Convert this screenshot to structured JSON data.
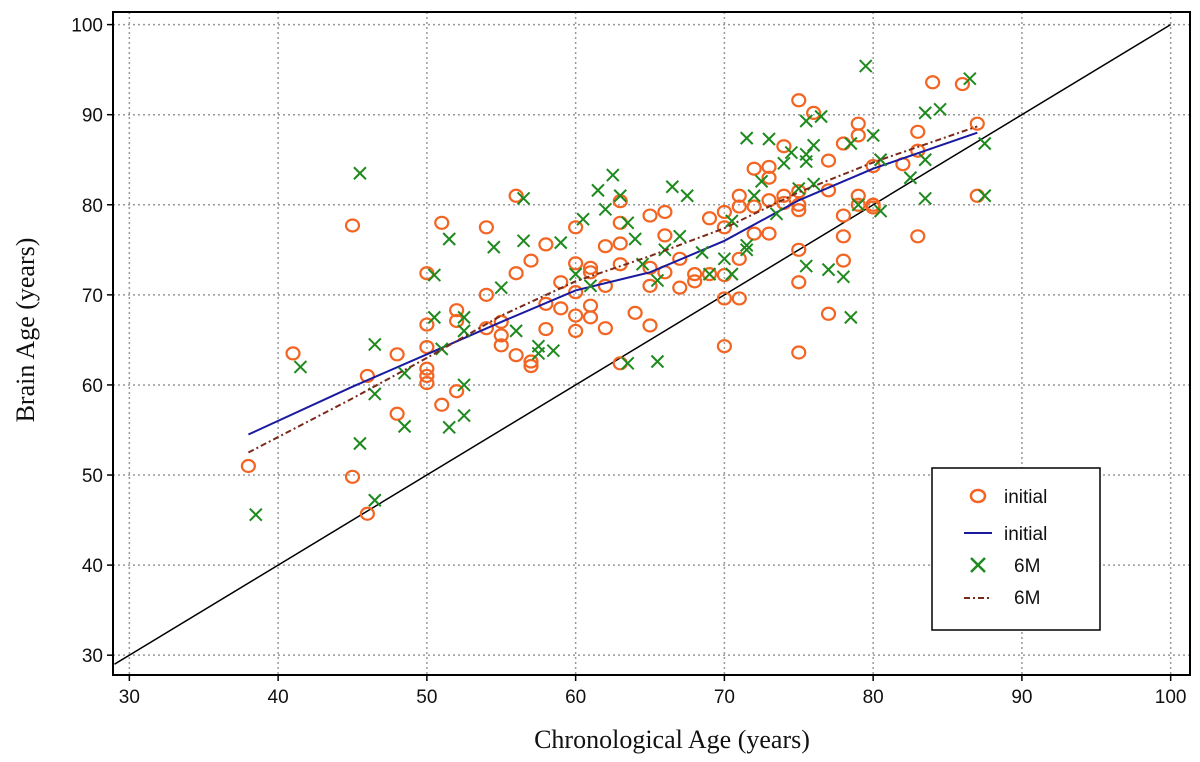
{
  "chart_data": {
    "type": "scatter",
    "title": "",
    "xlabel": "Chronological Age (years)",
    "ylabel": "Brain Age (years)",
    "xlim": [
      28.9,
      101.3
    ],
    "ylim": [
      27.8,
      101.4
    ],
    "xticks": [
      30,
      40,
      50,
      60,
      70,
      80,
      90,
      100
    ],
    "yticks": [
      30,
      40,
      50,
      60,
      70,
      80,
      90,
      100
    ],
    "grid": true,
    "legend_position": "lower-right",
    "reference_line": {
      "name": "identity",
      "x": [
        29,
        100
      ],
      "y": [
        29,
        100
      ],
      "color": "#000000"
    },
    "series": [
      {
        "name": "initial",
        "kind": "scatter",
        "marker": "circle",
        "color": "#f26522",
        "points": [
          [
            38,
            51
          ],
          [
            41,
            63.5
          ],
          [
            45,
            77.7
          ],
          [
            45,
            49.8
          ],
          [
            46,
            61
          ],
          [
            46,
            45.7
          ],
          [
            48,
            63.4
          ],
          [
            48,
            56.8
          ],
          [
            50,
            72.4
          ],
          [
            50,
            66.7
          ],
          [
            50,
            64.2
          ],
          [
            50,
            61.8
          ],
          [
            50,
            61
          ],
          [
            50,
            60.2
          ],
          [
            51,
            78
          ],
          [
            51,
            57.8
          ],
          [
            52,
            68.3
          ],
          [
            52,
            67.1
          ],
          [
            52,
            59.3
          ],
          [
            54,
            77.5
          ],
          [
            54,
            70
          ],
          [
            54,
            66.3
          ],
          [
            55,
            67
          ],
          [
            55,
            65.5
          ],
          [
            55,
            64.4
          ],
          [
            56,
            81
          ],
          [
            56,
            72.4
          ],
          [
            56,
            63.3
          ],
          [
            57,
            73.8
          ],
          [
            57,
            62.6
          ],
          [
            57,
            62.1
          ],
          [
            58,
            75.6
          ],
          [
            58,
            69
          ],
          [
            58,
            66.2
          ],
          [
            59,
            71.4
          ],
          [
            59,
            68.5
          ],
          [
            60,
            77.5
          ],
          [
            60,
            73.5
          ],
          [
            60,
            70.3
          ],
          [
            60,
            67.7
          ],
          [
            60,
            66
          ],
          [
            61,
            73
          ],
          [
            61,
            72.5
          ],
          [
            61,
            68.8
          ],
          [
            61,
            67.5
          ],
          [
            62,
            75.4
          ],
          [
            62,
            71
          ],
          [
            62,
            66.3
          ],
          [
            63,
            80.4
          ],
          [
            63,
            78
          ],
          [
            63,
            75.7
          ],
          [
            63,
            73.4
          ],
          [
            63,
            62.4
          ],
          [
            64,
            68
          ],
          [
            65,
            78.8
          ],
          [
            65,
            73
          ],
          [
            65,
            71
          ],
          [
            65,
            66.6
          ],
          [
            66,
            79.2
          ],
          [
            66,
            76.6
          ],
          [
            66,
            72.5
          ],
          [
            67,
            74
          ],
          [
            67,
            70.8
          ],
          [
            68,
            72.3
          ],
          [
            68,
            71.5
          ],
          [
            69,
            78.5
          ],
          [
            69,
            72.3
          ],
          [
            70,
            79.2
          ],
          [
            70,
            77.5
          ],
          [
            70,
            72.2
          ],
          [
            70,
            69.6
          ],
          [
            70,
            64.3
          ],
          [
            71,
            81
          ],
          [
            71,
            79.8
          ],
          [
            71,
            74
          ],
          [
            71,
            69.6
          ],
          [
            72,
            84
          ],
          [
            72,
            79.8
          ],
          [
            72,
            76.8
          ],
          [
            73,
            84.2
          ],
          [
            73,
            83
          ],
          [
            73,
            80.5
          ],
          [
            73,
            76.8
          ],
          [
            74,
            86.5
          ],
          [
            74,
            81
          ],
          [
            74,
            80.2
          ],
          [
            75,
            91.6
          ],
          [
            75,
            81.5
          ],
          [
            75,
            80
          ],
          [
            75,
            79.4
          ],
          [
            75,
            75
          ],
          [
            75,
            71.4
          ],
          [
            75,
            63.6
          ],
          [
            76,
            90.2
          ],
          [
            77,
            84.9
          ],
          [
            77,
            81.6
          ],
          [
            77,
            67.9
          ],
          [
            78,
            86.8
          ],
          [
            78,
            78.8
          ],
          [
            78,
            76.5
          ],
          [
            78,
            73.8
          ],
          [
            79,
            89
          ],
          [
            79,
            87.7
          ],
          [
            79,
            81
          ],
          [
            79,
            80
          ],
          [
            80,
            84.3
          ],
          [
            80,
            80
          ],
          [
            80,
            79.7
          ],
          [
            82,
            84.5
          ],
          [
            83,
            88.1
          ],
          [
            83,
            86
          ],
          [
            83,
            76.5
          ],
          [
            84,
            93.6
          ],
          [
            86,
            93.4
          ],
          [
            87,
            89
          ],
          [
            87,
            81
          ]
        ]
      },
      {
        "name": "initial",
        "kind": "line",
        "color": "#1a1aa0",
        "points": [
          [
            38,
            54.5
          ],
          [
            45,
            59.8
          ],
          [
            50,
            63.4
          ],
          [
            55,
            67
          ],
          [
            60,
            70.5
          ],
          [
            65,
            72.5
          ],
          [
            70,
            76
          ],
          [
            75,
            80.5
          ],
          [
            80,
            84
          ],
          [
            87,
            88
          ]
        ]
      },
      {
        "name": "6M",
        "kind": "scatter",
        "marker": "x",
        "color": "#1e8a1e",
        "points": [
          [
            38.5,
            45.6
          ],
          [
            41.5,
            62
          ],
          [
            45.5,
            83.5
          ],
          [
            45.5,
            53.5
          ],
          [
            46.5,
            64.5
          ],
          [
            46.5,
            59
          ],
          [
            46.5,
            47.2
          ],
          [
            48.5,
            61.3
          ],
          [
            48.5,
            55.4
          ],
          [
            50.5,
            72.2
          ],
          [
            50.5,
            67.5
          ],
          [
            51,
            64
          ],
          [
            51.5,
            76.2
          ],
          [
            51.5,
            55.3
          ],
          [
            52.5,
            67.5
          ],
          [
            52.5,
            66
          ],
          [
            52.5,
            60
          ],
          [
            52.5,
            56.6
          ],
          [
            54.5,
            75.3
          ],
          [
            55,
            70.8
          ],
          [
            56,
            66
          ],
          [
            56.5,
            80.7
          ],
          [
            56.5,
            76
          ],
          [
            57.5,
            64.3
          ],
          [
            57.5,
            63.5
          ],
          [
            58.5,
            63.8
          ],
          [
            59,
            75.8
          ],
          [
            60,
            72.3
          ],
          [
            60.5,
            78.4
          ],
          [
            61,
            71
          ],
          [
            61.5,
            81.6
          ],
          [
            62,
            79.5
          ],
          [
            62.5,
            83.3
          ],
          [
            63,
            81
          ],
          [
            63.5,
            78
          ],
          [
            63.5,
            62.4
          ],
          [
            64,
            76.2
          ],
          [
            64.5,
            73.4
          ],
          [
            65.5,
            71.6
          ],
          [
            65.5,
            62.6
          ],
          [
            66,
            75
          ],
          [
            66.5,
            82
          ],
          [
            67,
            76.5
          ],
          [
            67.5,
            81
          ],
          [
            68.5,
            74.7
          ],
          [
            69,
            72.3
          ],
          [
            70,
            74
          ],
          [
            70.5,
            78.2
          ],
          [
            70.5,
            72.3
          ],
          [
            71.5,
            87.4
          ],
          [
            71.5,
            75.5
          ],
          [
            71.5,
            75
          ],
          [
            72,
            81
          ],
          [
            72.5,
            82.6
          ],
          [
            73,
            87.3
          ],
          [
            73.5,
            79
          ],
          [
            74,
            84.6
          ],
          [
            74.5,
            85.8
          ],
          [
            75,
            81.8
          ],
          [
            75.5,
            89.3
          ],
          [
            75.5,
            85.6
          ],
          [
            75.5,
            84.8
          ],
          [
            75.5,
            73.2
          ],
          [
            76,
            86.6
          ],
          [
            76,
            82.3
          ],
          [
            76.5,
            89.8
          ],
          [
            77,
            72.8
          ],
          [
            78,
            72
          ],
          [
            78.5,
            86.8
          ],
          [
            78.5,
            67.5
          ],
          [
            79,
            80
          ],
          [
            79.5,
            95.4
          ],
          [
            80,
            87.7
          ],
          [
            80.5,
            85
          ],
          [
            80.5,
            79.3
          ],
          [
            82.5,
            83
          ],
          [
            83.5,
            90.2
          ],
          [
            83.5,
            85
          ],
          [
            83.5,
            80.7
          ],
          [
            84.5,
            90.6
          ],
          [
            86.5,
            94
          ],
          [
            87.5,
            86.8
          ],
          [
            87.5,
            81
          ]
        ]
      },
      {
        "name": "6M",
        "kind": "line",
        "style": "dash-dot",
        "color": "#7a2a1a",
        "points": [
          [
            38,
            52.5
          ],
          [
            45,
            58.5
          ],
          [
            50,
            63
          ],
          [
            55,
            67.7
          ],
          [
            60,
            71.5
          ],
          [
            65,
            74.3
          ],
          [
            70,
            77.4
          ],
          [
            75,
            81.4
          ],
          [
            80,
            84.7
          ],
          [
            87,
            88.7
          ]
        ]
      }
    ]
  }
}
